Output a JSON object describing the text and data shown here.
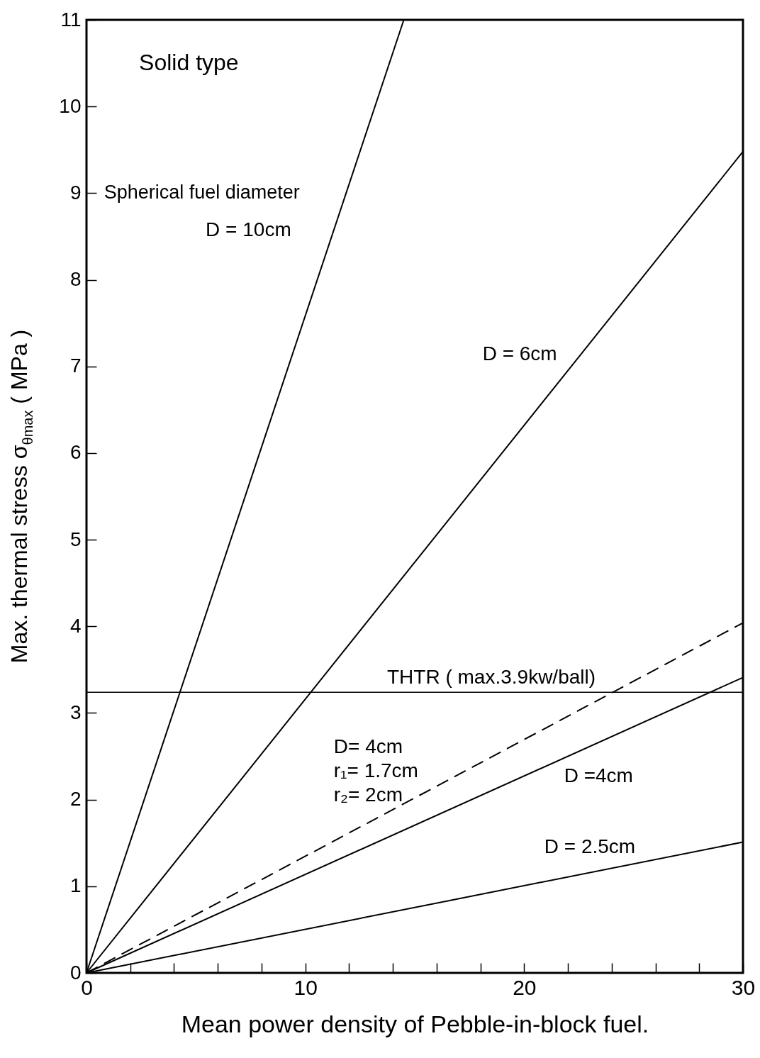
{
  "chart_data": {
    "type": "line",
    "xlabel": "Mean power density of Pebble-in-block fuel.",
    "ylabel": "Max. thermal stress σ$_{θmax}$ ( MPa )",
    "series": [
      {
        "name": "D = 10cm",
        "color": "#000000",
        "line_style": "solid",
        "x": [
          0,
          14.5
        ],
        "values": [
          0,
          11
        ]
      },
      {
        "name": "D = 6cm",
        "color": "#000000",
        "line_style": "solid",
        "x": [
          0,
          30
        ],
        "values": [
          0,
          9.48
        ]
      },
      {
        "name": "D= 4cm\nr₁= 1.7cm\nr₂= 2cm",
        "color": "#000000",
        "line_style": "dashed",
        "x": [
          0,
          30
        ],
        "values": [
          0,
          4.04
        ]
      },
      {
        "name": "D =4cm",
        "color": "#000000",
        "line_style": "solid",
        "x": [
          0,
          30
        ],
        "values": [
          0,
          3.41
        ]
      },
      {
        "name": "D = 2.5cm",
        "color": "#000000",
        "line_style": "solid",
        "x": [
          0,
          30
        ],
        "values": [
          0,
          1.51
        ]
      }
    ],
    "ref_lines": [
      {
        "axis": "y",
        "value": 3.24,
        "label": "THTR ( max.3.9kw/ball)",
        "color": "#000000"
      }
    ],
    "annotations": [
      "Solid type",
      "Spherical fuel diameter"
    ],
    "xlim": [
      0,
      30
    ],
    "ylim": [
      0,
      11
    ],
    "xticks": [
      0,
      {
        "value": 2,
        "label": null
      },
      {
        "value": 4,
        "label": null
      },
      {
        "value": 6,
        "label": null
      },
      {
        "value": 8,
        "label": null
      },
      10,
      {
        "value": 12,
        "label": null
      },
      {
        "value": 14,
        "label": null
      },
      {
        "value": 16,
        "label": null
      },
      {
        "value": 18,
        "label": null
      },
      20,
      {
        "value": 22,
        "label": null
      },
      {
        "value": 24,
        "label": null
      },
      {
        "value": 26,
        "label": null
      },
      {
        "value": 28,
        "label": null
      },
      30
    ],
    "yticks": [
      0,
      1,
      2,
      3,
      4,
      5,
      6,
      7,
      8,
      9,
      10,
      11
    ],
    "grid": false,
    "marker": "none"
  }
}
